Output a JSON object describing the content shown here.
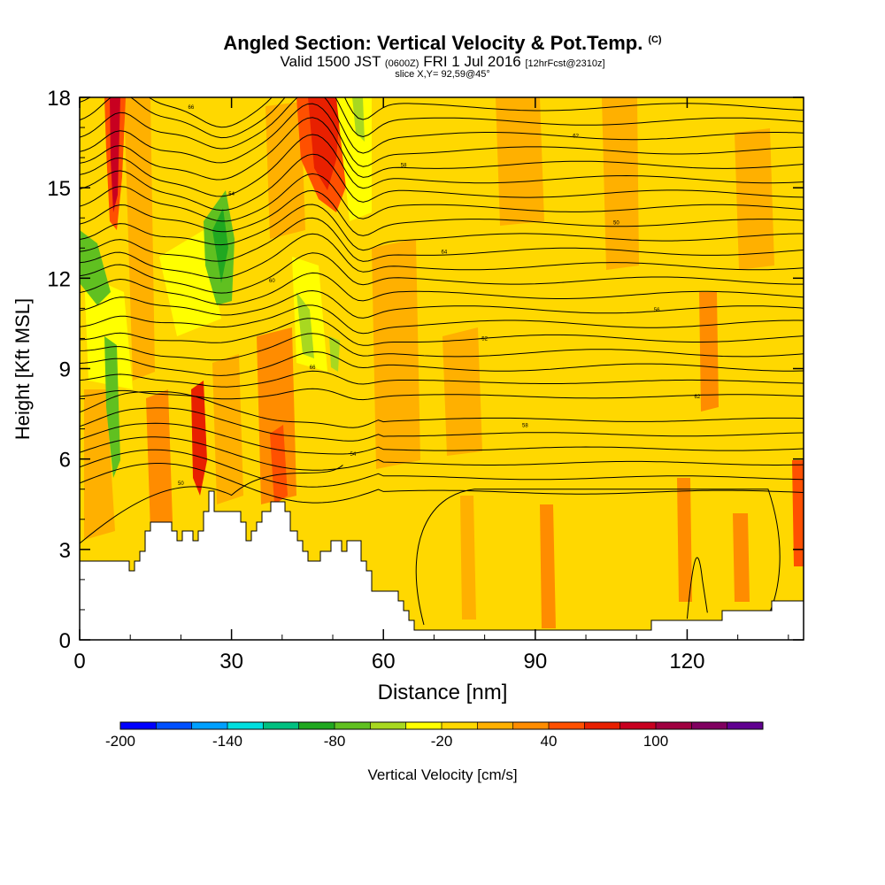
{
  "titles": {
    "main": "Angled Section: Vertical Velocity & Pot.Temp.",
    "copyright": "(C)",
    "valid_main": "Valid 1500 JST",
    "valid_zulu": "(0600Z)",
    "valid_date": "FRI 1 Jul 2016",
    "forecast": "[12hrFcst@2310z]",
    "slice": "slice X,Y= 92,59@45°"
  },
  "chart_data": {
    "type": "heatmap",
    "xlabel": "Distance [nm]",
    "ylabel": "Height [Kft MSL]",
    "xlim": [
      0,
      143
    ],
    "ylim": [
      0,
      18
    ],
    "x_ticks": [
      "0",
      "30",
      "60",
      "90",
      "120"
    ],
    "y_ticks": [
      "0",
      "3",
      "6",
      "9",
      "12",
      "15",
      "18"
    ],
    "colorbar": {
      "label": "Vertical Velocity [cm/s]",
      "tick_labels": [
        "-200",
        "-140",
        "-80",
        "-20",
        "40",
        "100"
      ],
      "colors": [
        "#0000ff",
        "#0050ff",
        "#00a0ff",
        "#00e0e0",
        "#00c080",
        "#20a820",
        "#60c020",
        "#a8d820",
        "#ffff00",
        "#ffd800",
        "#ffb000",
        "#ff8c00",
        "#ff5000",
        "#e82000",
        "#c80020",
        "#a00040",
        "#800060",
        "#600090"
      ]
    },
    "velocity_regions": [
      {
        "kind": "updraft",
        "x": 7,
        "bottom": 13,
        "top": 18,
        "level": "strong"
      },
      {
        "kind": "updraft",
        "x": 46,
        "bottom": 14,
        "top": 18,
        "level": "strong"
      },
      {
        "kind": "updraft",
        "x": 24,
        "bottom": 4,
        "top": 8,
        "level": "moderate"
      },
      {
        "kind": "downdraft",
        "x": 0,
        "bottom": 11,
        "top": 14,
        "level": "moderate"
      },
      {
        "kind": "downdraft",
        "x": 7,
        "bottom": 5.5,
        "top": 10,
        "level": "moderate"
      },
      {
        "kind": "downdraft",
        "x": 29,
        "bottom": 11,
        "top": 14,
        "level": "moderate"
      },
      {
        "kind": "downdraft",
        "x": 46,
        "bottom": 9,
        "top": 12,
        "level": "weak"
      },
      {
        "kind": "downdraft",
        "x": 55,
        "bottom": 15,
        "top": 18,
        "level": "weak"
      }
    ],
    "isentrope_labels": [
      "50",
      "52",
      "54",
      "56",
      "58",
      "60",
      "62",
      "64",
      "66"
    ]
  }
}
